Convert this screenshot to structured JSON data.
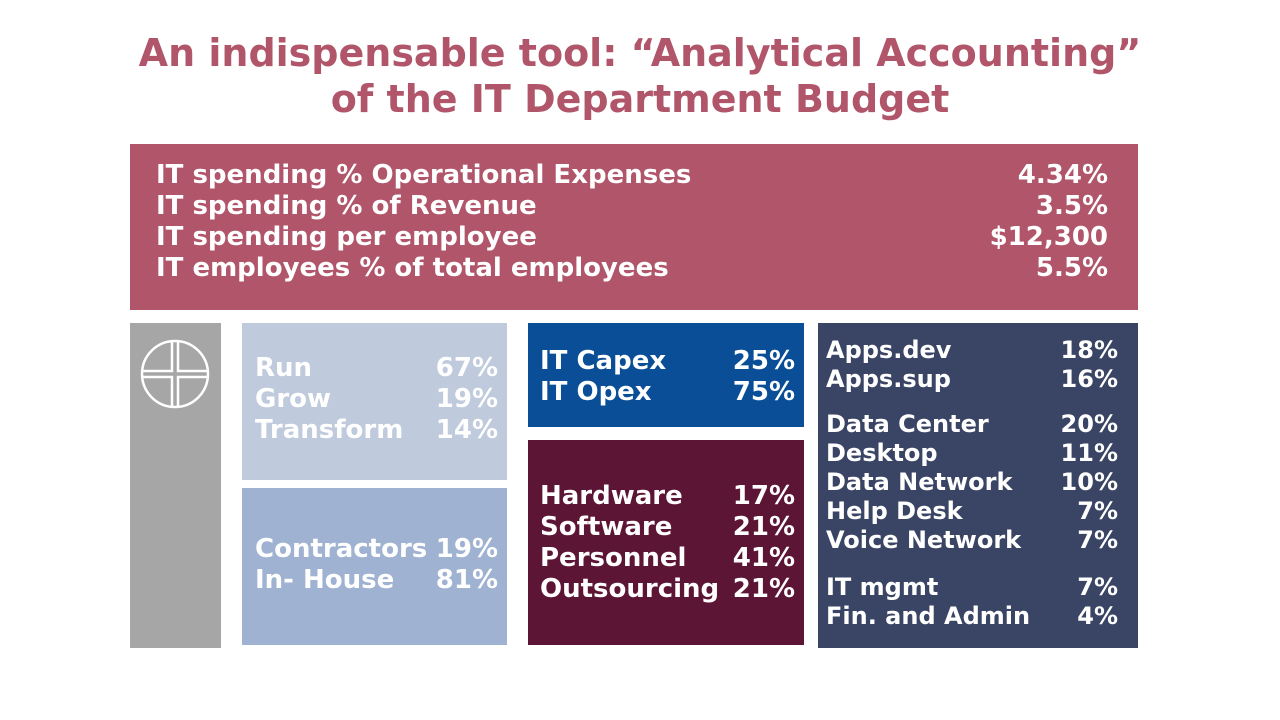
{
  "title": {
    "line1": "An indispensable tool: “Analytical Accounting”",
    "line2": "of the IT Department Budget"
  },
  "summary": [
    {
      "label": "IT spending % Operational Expenses",
      "value": "4.34%"
    },
    {
      "label": "IT spending % of Revenue",
      "value": "3.5%"
    },
    {
      "label": "IT spending per employee",
      "value": "$12,300"
    },
    {
      "label": "IT employees % of total employees",
      "value": "5.5%"
    }
  ],
  "run_grow": [
    {
      "label": "Run",
      "value": "67%"
    },
    {
      "label": "Grow",
      "value": "19%"
    },
    {
      "label": "Transform",
      "value": "14%"
    }
  ],
  "sourcing": [
    {
      "label": "Contractors",
      "value": "19%"
    },
    {
      "label": "In- House",
      "value": "81%"
    }
  ],
  "capex_opex": [
    {
      "label": "IT Capex",
      "value": "25%"
    },
    {
      "label": "IT Opex",
      "value": "75%"
    }
  ],
  "cost_types": [
    {
      "label": "Hardware",
      "value": "17%"
    },
    {
      "label": "Software",
      "value": "21%"
    },
    {
      "label": "Personnel",
      "value": "41%"
    },
    {
      "label": "Outsourcing",
      "value": "21%"
    }
  ],
  "functions": {
    "apps": [
      {
        "label": "Apps.dev",
        "value": "18%"
      },
      {
        "label": "Apps.sup",
        "value": "16%"
      }
    ],
    "infrastructure": [
      {
        "label": "Data Center",
        "value": "20%"
      },
      {
        "label": "Desktop",
        "value": "11%"
      },
      {
        "label": "Data Network",
        "value": "10%"
      },
      {
        "label": "Help Desk",
        "value": "7%"
      },
      {
        "label": "Voice Network",
        "value": "7%"
      }
    ],
    "management": [
      {
        "label": "IT mgmt",
        "value": "7%"
      },
      {
        "label": "Fin. and Admin",
        "value": "4%"
      }
    ]
  },
  "colors": {
    "title": "#b0556a",
    "summary_bg": "#b0556a",
    "side_bar": "#a6a6a6",
    "run_grow_bg": "#bfcadd",
    "sourcing_bg": "#9fb2d2",
    "capex_opex_bg": "#0a4e97",
    "cost_types_bg": "#5c1535",
    "functions_bg": "#3a4464"
  },
  "icons": {
    "side_logo": "circle-cross-logo-icon"
  }
}
